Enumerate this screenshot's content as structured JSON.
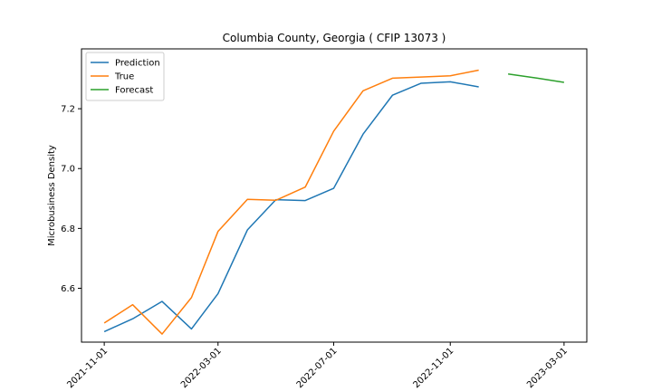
{
  "chart_data": {
    "type": "line",
    "title": "Columbia County, Georgia ( CFIP 13073 )",
    "xlabel": "",
    "ylabel": "Microbusiness Density",
    "xlim": [
      "2021-10-08",
      "2023-03-25"
    ],
    "ylim": [
      6.42,
      7.4
    ],
    "xticks": [
      "2021-11-01",
      "2022-03-01",
      "2022-07-01",
      "2022-11-01",
      "2023-03-01"
    ],
    "yticks": [
      6.6,
      6.8,
      7.0,
      7.2
    ],
    "legend_position": "top-left",
    "series": [
      {
        "name": "Prediction",
        "color": "#1f77b4",
        "x": [
          "2021-11-01",
          "2021-12-01",
          "2022-01-01",
          "2022-02-01",
          "2022-03-01",
          "2022-04-01",
          "2022-05-01",
          "2022-06-01",
          "2022-07-01",
          "2022-08-01",
          "2022-09-01",
          "2022-10-01",
          "2022-11-01",
          "2022-12-01"
        ],
        "y": [
          6.455,
          6.498,
          6.556,
          6.464,
          6.582,
          6.795,
          6.896,
          6.893,
          6.934,
          7.115,
          7.245,
          7.285,
          7.29,
          7.273
        ]
      },
      {
        "name": "True",
        "color": "#ff7f0e",
        "x": [
          "2021-11-01",
          "2021-12-01",
          "2022-01-01",
          "2022-02-01",
          "2022-03-01",
          "2022-04-01",
          "2022-05-01",
          "2022-06-01",
          "2022-07-01",
          "2022-08-01",
          "2022-09-01",
          "2022-10-01",
          "2022-11-01",
          "2022-12-01"
        ],
        "y": [
          6.484,
          6.545,
          6.447,
          6.569,
          6.79,
          6.897,
          6.894,
          6.938,
          7.125,
          7.26,
          7.302,
          7.306,
          7.31,
          7.329
        ]
      },
      {
        "name": "Forecast",
        "color": "#2ca02c",
        "x": [
          "2023-01-01",
          "2023-02-01",
          "2023-03-01"
        ],
        "y": [
          7.316,
          7.302,
          7.288
        ]
      }
    ]
  }
}
